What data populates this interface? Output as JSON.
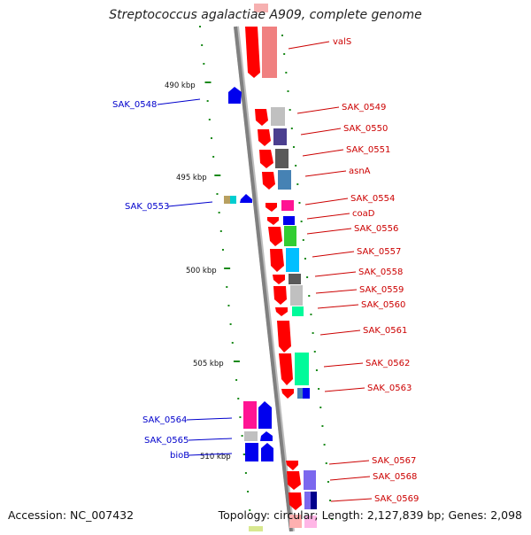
{
  "title": "Streptococcus agalactiae A909, complete genome",
  "accession": "Accession: NC_007432",
  "summary": "Topology: circular; Length: 2,127,839 bp; Genes: 2,098",
  "colors": {
    "axis": "#808080",
    "tick": "#1a8a1a",
    "forward_label": "#cc0000",
    "reverse_label": "#0000cc",
    "forward_gene": "#ff0000",
    "reverse_gene": "#0000ee"
  },
  "scale_labels": [
    "490 kbp",
    "495 kbp",
    "500 kbp",
    "505 kbp",
    "510 kbp"
  ],
  "forward_gene_labels": [
    "valS",
    "SAK_0549",
    "SAK_0550",
    "SAK_0551",
    "asnA",
    "SAK_0554",
    "coaD",
    "SAK_0556",
    "SAK_0557",
    "SAK_0558",
    "SAK_0559",
    "SAK_0560",
    "SAK_0561",
    "SAK_0562",
    "SAK_0563",
    "SAK_0567",
    "SAK_0568",
    "SAK_0569"
  ],
  "reverse_gene_labels": [
    "SAK_0548",
    "SAK_0553",
    "SAK_0564",
    "SAK_0565",
    "bioB"
  ]
}
